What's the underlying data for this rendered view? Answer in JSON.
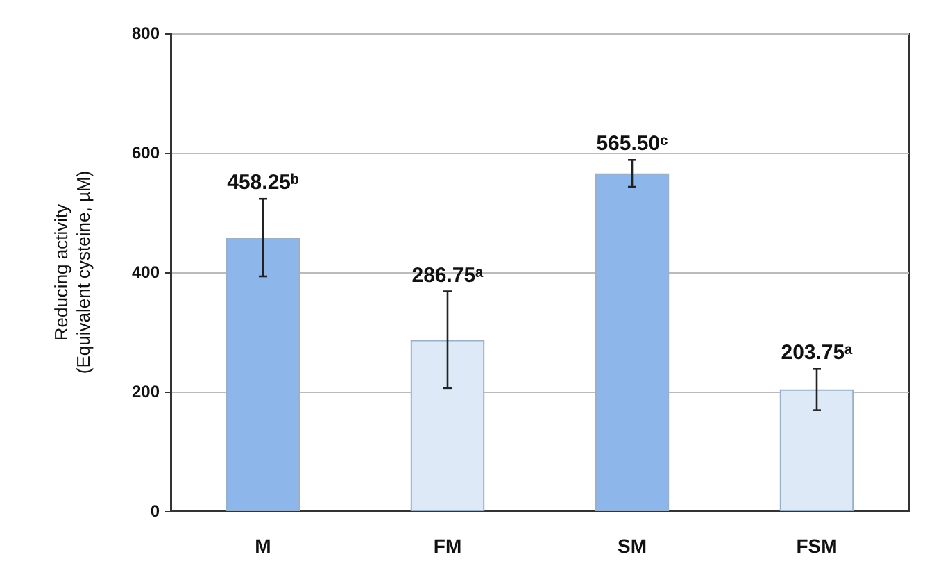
{
  "chart_data": {
    "type": "bar",
    "ylabel": "Reducing activity\n(Equivalent cysteine, µM)",
    "categories": [
      "M",
      "FM",
      "SM",
      "FSM"
    ],
    "values": [
      458.25,
      286.75,
      565.5,
      203.75
    ],
    "colors": [
      "#8db6ea",
      "#dde9f6",
      "#8db6ea",
      "#dde9f6"
    ],
    "errors": [
      [
        393,
        523
      ],
      [
        206,
        368
      ],
      [
        543,
        588
      ],
      [
        169,
        238
      ]
    ],
    "value_labels": [
      "458.25ᵇ",
      "286.75ᵃ",
      "565.50ᶜ",
      "203.75ᵃ"
    ],
    "ylim": [
      0,
      800
    ],
    "yticks": [
      0,
      200,
      400,
      600,
      800
    ],
    "grid": "y"
  }
}
